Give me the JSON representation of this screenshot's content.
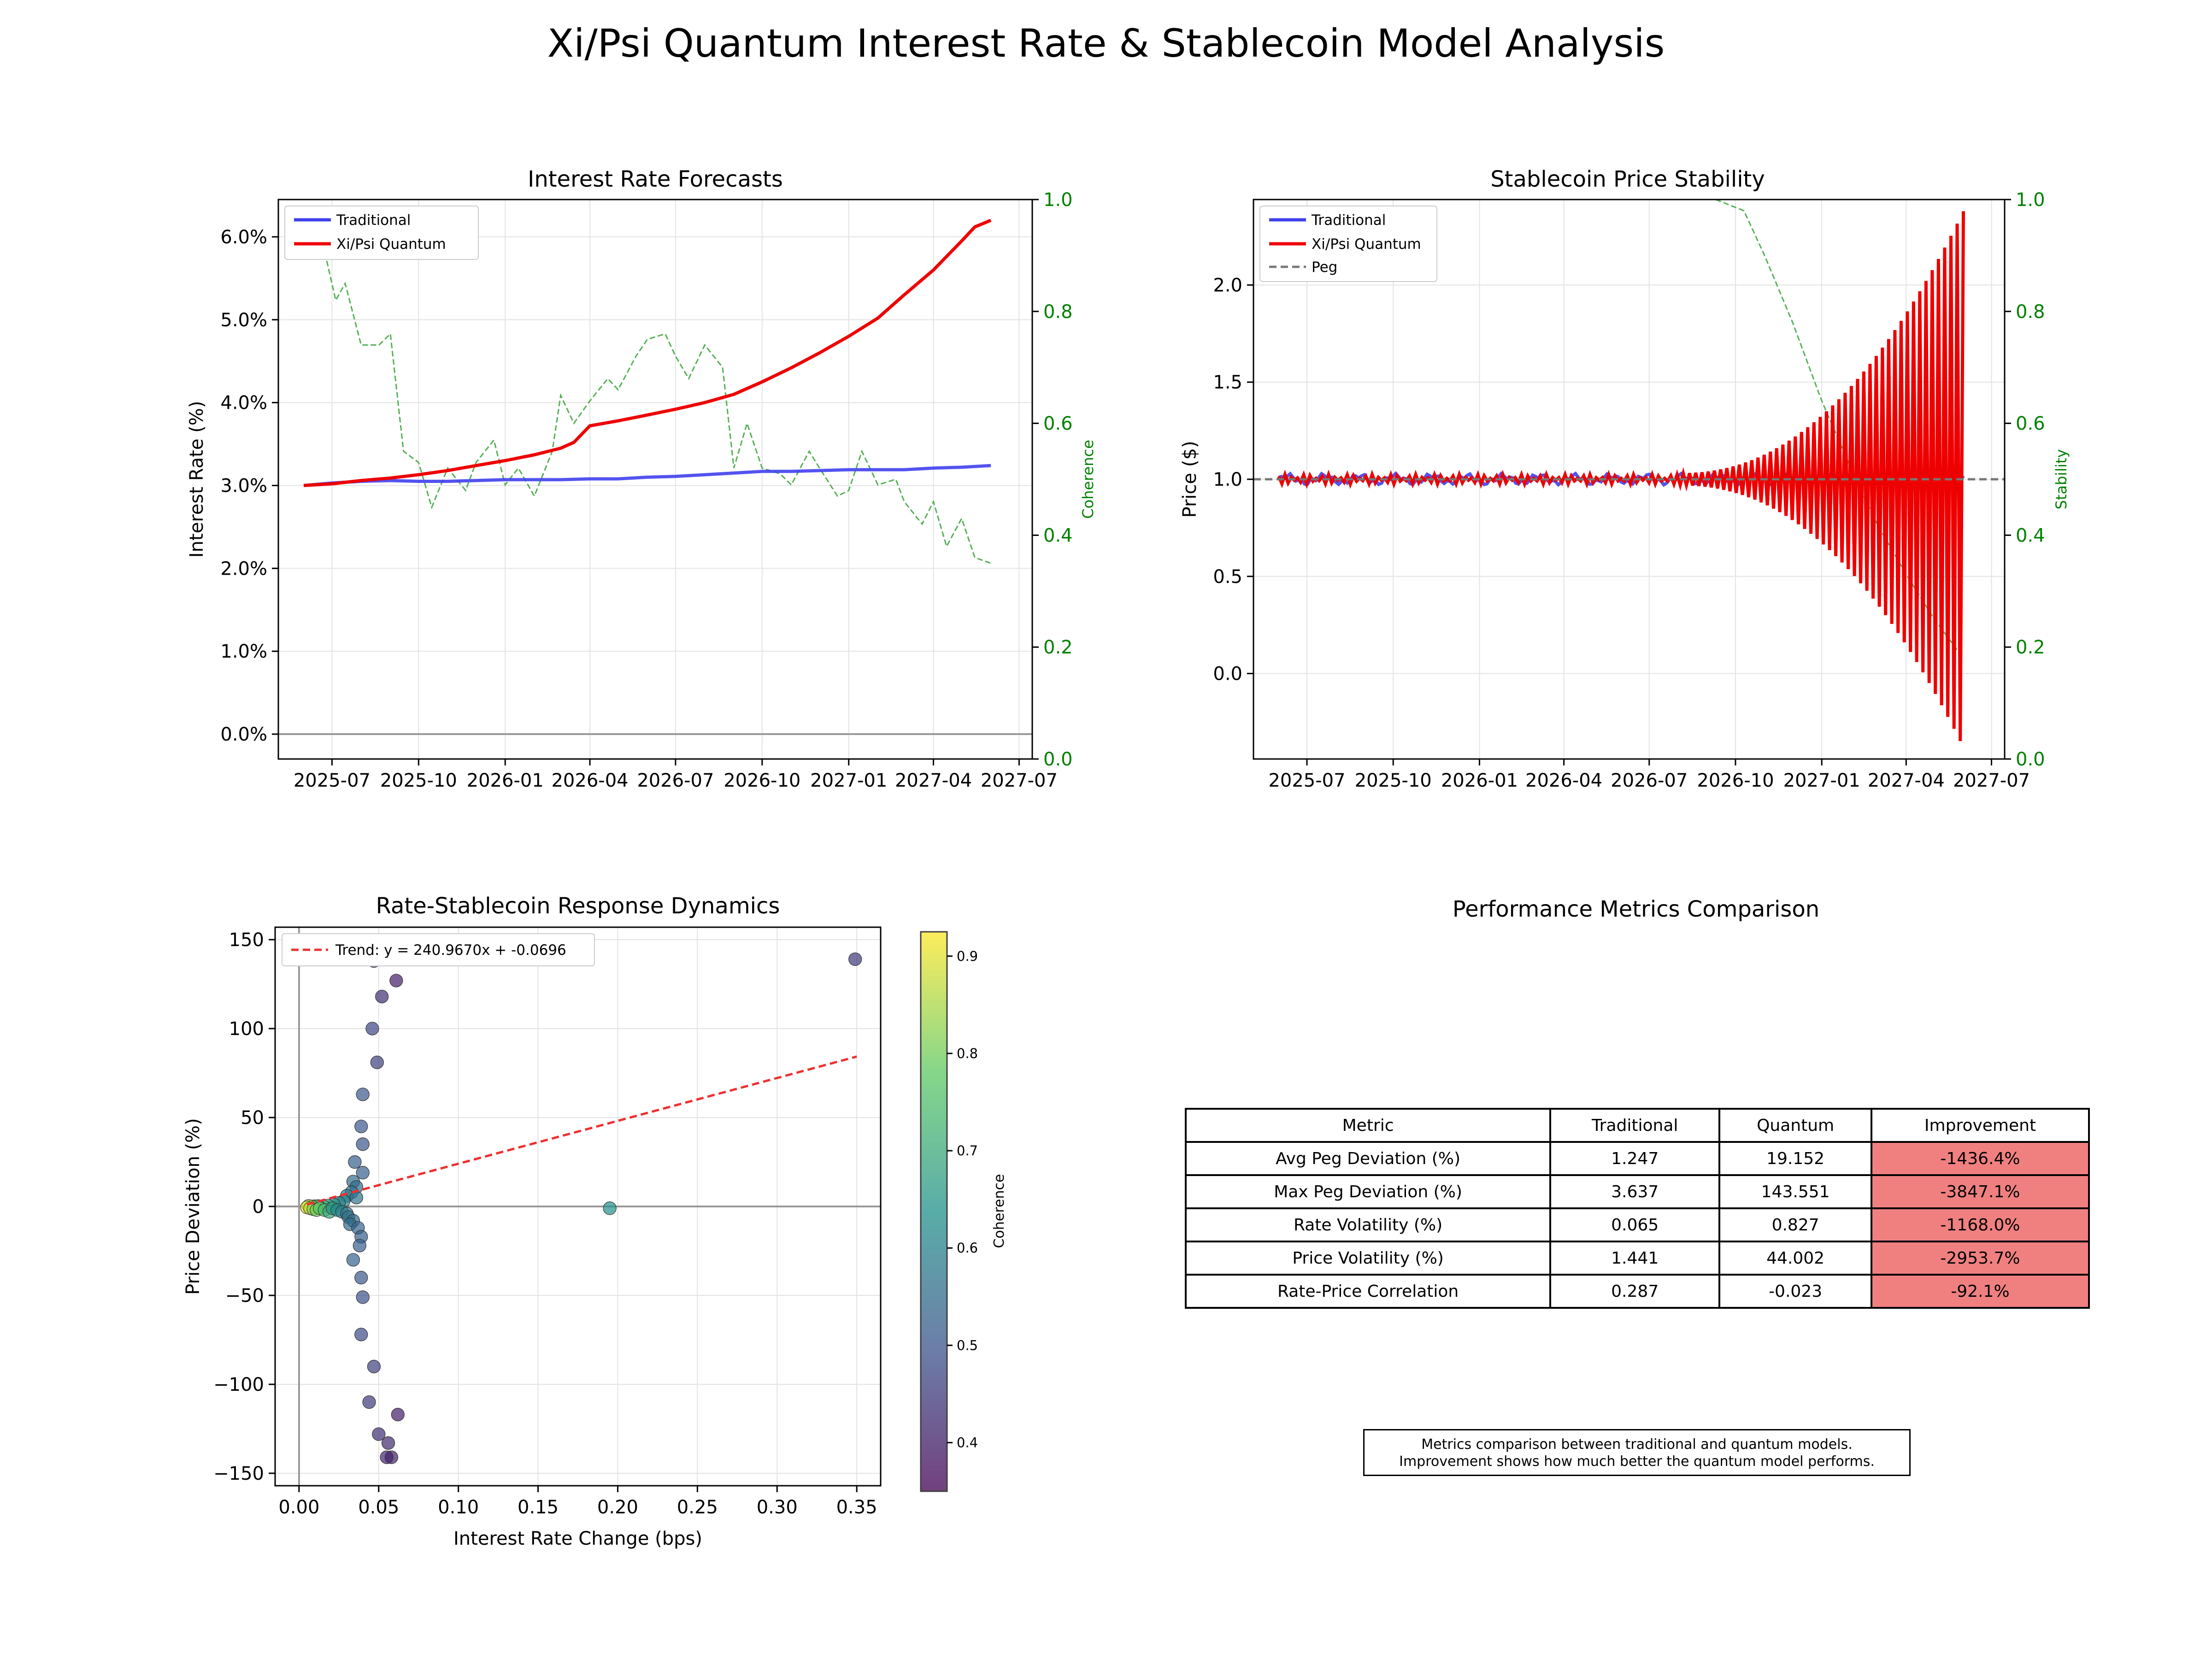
{
  "figure": {
    "title": "Xi/Psi Quantum Interest Rate & Stablecoin Model Analysis"
  },
  "chart_data": [
    {
      "type": "line",
      "title": "Interest Rate Forecasts",
      "ylabel": "Interest Rate (%)",
      "y2label": "Coherence",
      "x_ticks": [
        "2025-07",
        "2025-10",
        "2026-01",
        "2026-04",
        "2026-07",
        "2026-10",
        "2027-01",
        "2027-04",
        "2027-07"
      ],
      "y_ticks": [
        "0.0%",
        "1.0%",
        "2.0%",
        "3.0%",
        "4.0%",
        "5.0%",
        "6.0%"
      ],
      "y2_ticks": [
        "0.0",
        "0.2",
        "0.4",
        "0.6",
        "0.8",
        "1.0"
      ],
      "xlim": [
        "2025-05-05",
        "2027-07-15"
      ],
      "ylim": [
        -0.3,
        6.45
      ],
      "y2lim": [
        0,
        1
      ],
      "grid": true,
      "legend": "top-left",
      "series": [
        {
          "name": "Traditional",
          "color": "#4040ee",
          "axis": "left",
          "x": [
            "2025-06-01",
            "2025-07-01",
            "2025-08-01",
            "2025-09-01",
            "2025-10-01",
            "2025-11-01",
            "2025-12-01",
            "2026-01-01",
            "2026-02-01",
            "2026-03-01",
            "2026-04-01",
            "2026-05-01",
            "2026-06-01",
            "2026-07-01",
            "2026-08-01",
            "2026-09-01",
            "2026-10-01",
            "2026-11-01",
            "2026-12-01",
            "2027-01-01",
            "2027-02-01",
            "2027-03-01",
            "2027-04-01",
            "2027-05-01",
            "2027-06-01"
          ],
          "values": [
            3.0,
            3.03,
            3.05,
            3.06,
            3.05,
            3.05,
            3.06,
            3.07,
            3.07,
            3.07,
            3.08,
            3.08,
            3.1,
            3.11,
            3.13,
            3.15,
            3.17,
            3.17,
            3.18,
            3.19,
            3.19,
            3.19,
            3.21,
            3.22,
            3.24
          ]
        },
        {
          "name": "Xi/Psi Quantum",
          "color": "#ee0000",
          "axis": "left",
          "x": [
            "2025-06-01",
            "2025-07-01",
            "2025-08-01",
            "2025-09-01",
            "2025-10-01",
            "2025-11-01",
            "2025-12-01",
            "2026-01-01",
            "2026-02-01",
            "2026-03-01",
            "2026-03-15",
            "2026-04-01",
            "2026-05-01",
            "2026-06-01",
            "2026-07-01",
            "2026-08-01",
            "2026-09-01",
            "2026-10-01",
            "2026-11-01",
            "2026-12-01",
            "2027-01-01",
            "2027-02-01",
            "2027-03-01",
            "2027-04-01",
            "2027-05-01",
            "2027-05-15",
            "2027-06-01"
          ],
          "values": [
            3.0,
            3.02,
            3.06,
            3.09,
            3.13,
            3.18,
            3.24,
            3.3,
            3.37,
            3.45,
            3.52,
            3.72,
            3.78,
            3.85,
            3.92,
            4.0,
            4.1,
            4.25,
            4.42,
            4.6,
            4.8,
            5.02,
            5.3,
            5.6,
            5.95,
            6.12,
            6.2
          ]
        },
        {
          "name": "",
          "color": "#55b055",
          "axis": "right",
          "style": "dashed",
          "x": [
            "2025-06-01",
            "2025-06-20",
            "2025-07-05",
            "2025-07-15",
            "2025-08-01",
            "2025-08-20",
            "2025-09-01",
            "2025-09-15",
            "2025-10-01",
            "2025-10-15",
            "2025-11-01",
            "2025-11-20",
            "2025-12-01",
            "2025-12-20",
            "2026-01-01",
            "2026-01-15",
            "2026-02-01",
            "2026-02-20",
            "2026-03-01",
            "2026-03-15",
            "2026-04-01",
            "2026-04-20",
            "2026-05-01",
            "2026-05-20",
            "2026-06-01",
            "2026-06-20",
            "2026-07-01",
            "2026-07-15",
            "2026-08-01",
            "2026-08-20",
            "2026-09-01",
            "2026-09-15",
            "2026-10-01",
            "2026-10-20",
            "2026-11-01",
            "2026-11-20",
            "2026-12-01",
            "2026-12-20",
            "2027-01-01",
            "2027-01-15",
            "2027-02-01",
            "2027-02-20",
            "2027-03-01",
            "2027-03-20",
            "2027-04-01",
            "2027-04-15",
            "2027-05-01",
            "2027-05-15",
            "2027-06-01"
          ],
          "values": [
            0.92,
            0.93,
            0.82,
            0.85,
            0.74,
            0.74,
            0.76,
            0.55,
            0.53,
            0.45,
            0.52,
            0.48,
            0.53,
            0.57,
            0.49,
            0.52,
            0.47,
            0.55,
            0.65,
            0.6,
            0.64,
            0.68,
            0.66,
            0.72,
            0.75,
            0.76,
            0.72,
            0.68,
            0.74,
            0.7,
            0.52,
            0.6,
            0.52,
            0.51,
            0.49,
            0.55,
            0.52,
            0.47,
            0.48,
            0.55,
            0.49,
            0.5,
            0.46,
            0.42,
            0.46,
            0.38,
            0.43,
            0.36,
            0.35
          ]
        }
      ]
    },
    {
      "type": "line",
      "title": "Stablecoin Price Stability",
      "ylabel": "Price ($)",
      "y2label": "Stability",
      "x_ticks": [
        "2025-07",
        "2025-10",
        "2026-01",
        "2026-04",
        "2026-07",
        "2026-10",
        "2027-01",
        "2027-04",
        "2027-07"
      ],
      "y_ticks": [
        "0.0",
        "0.5",
        "1.0",
        "1.5",
        "2.0"
      ],
      "y2_ticks": [
        "0.0",
        "0.2",
        "0.4",
        "0.6",
        "0.8",
        "1.0"
      ],
      "xlim": [
        "2025-05-05",
        "2027-07-15"
      ],
      "ylim": [
        -0.44,
        2.44
      ],
      "y2lim": [
        0,
        1
      ],
      "grid": true,
      "legend": "top-left",
      "series": [
        {
          "name": "Traditional",
          "color": "#4040ee",
          "note": "fluctuates near 1.0 (±0.04)"
        },
        {
          "name": "Xi/Psi Quantum",
          "color": "#ee0000",
          "note": "oscillation around 1.0 growing to amplitude ~1.4 by 2027-05"
        },
        {
          "name": "Peg",
          "color": "#777777",
          "style": "dashed",
          "value": 1.0
        },
        {
          "name": "",
          "color": "#55b055",
          "style": "dashed",
          "axis": "right",
          "x": [
            "2026-09-10",
            "2026-10-10",
            "2026-11-01",
            "2026-12-01",
            "2027-01-01",
            "2027-02-01",
            "2027-03-01",
            "2027-04-01",
            "2027-05-01",
            "2027-06-01"
          ],
          "values": [
            1.0,
            0.98,
            0.9,
            0.78,
            0.64,
            0.52,
            0.42,
            0.33,
            0.25,
            0.18
          ]
        }
      ]
    },
    {
      "type": "scatter",
      "title": "Rate-Stablecoin Response Dynamics",
      "xlabel": "Interest Rate Change (bps)",
      "ylabel": "Price Deviation (%)",
      "x_ticks": [
        "0.00",
        "0.05",
        "0.10",
        "0.15",
        "0.20",
        "0.25",
        "0.30",
        "0.35"
      ],
      "y_ticks": [
        "150",
        "100",
        "50",
        "0",
        "−50",
        "−100",
        "−150"
      ],
      "xlim": [
        -0.015,
        0.365
      ],
      "ylim": [
        -157,
        157
      ],
      "colorbar_label": "Coherence",
      "colorbar_ticks": [
        "0.4",
        "0.5",
        "0.6",
        "0.7",
        "0.8",
        "0.9"
      ],
      "colorbar_range": [
        0.35,
        0.925
      ],
      "trend": {
        "label": "Trend: y = 240.9670x + -0.0696",
        "slope": 240.967,
        "intercept": -0.0696,
        "x_range": [
          0.005,
          0.35
        ]
      },
      "legend": "top-left",
      "points": [
        [
          0.047,
          138,
          0.44
        ],
        [
          0.061,
          127,
          0.4
        ],
        [
          0.052,
          118,
          0.43
        ],
        [
          0.046,
          100,
          0.47
        ],
        [
          0.049,
          81,
          0.46
        ],
        [
          0.04,
          63,
          0.5
        ],
        [
          0.039,
          45,
          0.5
        ],
        [
          0.04,
          35,
          0.5
        ],
        [
          0.035,
          25,
          0.52
        ],
        [
          0.04,
          19,
          0.52
        ],
        [
          0.034,
          14,
          0.55
        ],
        [
          0.036,
          11,
          0.55
        ],
        [
          0.033,
          8,
          0.57
        ],
        [
          0.03,
          6,
          0.58
        ],
        [
          0.036,
          5,
          0.57
        ],
        [
          0.028,
          3,
          0.6
        ],
        [
          0.025,
          2,
          0.6
        ],
        [
          0.022,
          1,
          0.65
        ],
        [
          0.018,
          0.5,
          0.68
        ],
        [
          0.015,
          0.3,
          0.7
        ],
        [
          0.012,
          0.2,
          0.72
        ],
        [
          0.01,
          0.1,
          0.75
        ],
        [
          0.008,
          0,
          0.8
        ],
        [
          0.006,
          0.3,
          0.85
        ],
        [
          0.005,
          -0.5,
          0.9
        ],
        [
          0.007,
          -1,
          0.88
        ],
        [
          0.009,
          -1.5,
          0.82
        ],
        [
          0.011,
          -2,
          0.8
        ],
        [
          0.013,
          -1,
          0.78
        ],
        [
          0.016,
          -2,
          0.74
        ],
        [
          0.019,
          -3,
          0.7
        ],
        [
          0.021,
          -1,
          0.66
        ],
        [
          0.024,
          -2,
          0.62
        ],
        [
          0.027,
          -3,
          0.6
        ],
        [
          0.03,
          -4,
          0.57
        ],
        [
          0.031,
          -6,
          0.56
        ],
        [
          0.034,
          -8,
          0.55
        ],
        [
          0.032,
          -10,
          0.55
        ],
        [
          0.037,
          -12,
          0.53
        ],
        [
          0.039,
          -17,
          0.52
        ],
        [
          0.038,
          -22,
          0.52
        ],
        [
          0.034,
          -30,
          0.53
        ],
        [
          0.039,
          -40,
          0.5
        ],
        [
          0.04,
          -51,
          0.49
        ],
        [
          0.039,
          -72,
          0.48
        ],
        [
          0.047,
          -90,
          0.46
        ],
        [
          0.044,
          -110,
          0.45
        ],
        [
          0.062,
          -117,
          0.4
        ],
        [
          0.05,
          -128,
          0.43
        ],
        [
          0.056,
          -133,
          0.42
        ],
        [
          0.058,
          -141,
          0.4
        ],
        [
          0.055,
          -141,
          0.41
        ],
        [
          0.195,
          -1,
          0.63
        ],
        [
          0.349,
          139,
          0.45
        ]
      ]
    }
  ],
  "metrics": {
    "title": "Performance Metrics Comparison",
    "headers": [
      "Metric",
      "Traditional",
      "Quantum",
      "Improvement"
    ],
    "rows": [
      [
        "Avg Peg Deviation (%)",
        "1.247",
        "19.152",
        "-1436.4%"
      ],
      [
        "Max Peg Deviation (%)",
        "3.637",
        "143.551",
        "-3847.1%"
      ],
      [
        "Rate Volatility (%)",
        "0.065",
        "0.827",
        "-1168.0%"
      ],
      [
        "Price Volatility (%)",
        "1.441",
        "44.002",
        "-2953.7%"
      ],
      [
        "Rate-Price Correlation",
        "0.287",
        "-0.023",
        "-92.1%"
      ]
    ],
    "highlight_color": "#f08080",
    "note_line1": "Metrics comparison between traditional and quantum models.",
    "note_line2": "Improvement shows how much better the quantum model performs."
  }
}
